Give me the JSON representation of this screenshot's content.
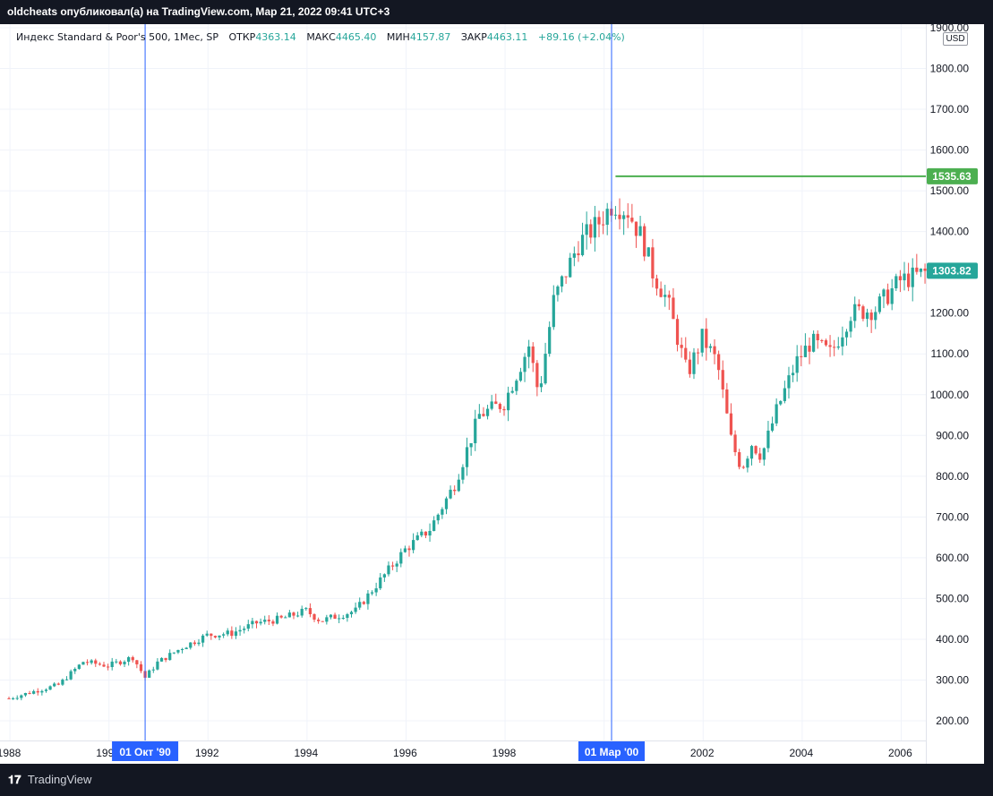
{
  "header": {
    "publisher_text": "oldcheats опубликовал(а) на TradingView.com, Мар 21, 2022 09:41 UTC+3"
  },
  "legend": {
    "title": "Индекс Standard & Poor's 500, 1Мес, SP",
    "open_label": "ОТКР",
    "open_value": "4363.14",
    "high_label": "МАКС",
    "high_value": "4465.40",
    "low_label": "МИН",
    "low_value": "4157.87",
    "close_label": "ЗАКР",
    "close_value": "4463.11",
    "change": "+89.16 (+2.04%)"
  },
  "currency": "USD",
  "footer": {
    "brand_icon": "tradingview-logo-icon",
    "brand_text": "TradingView"
  },
  "colors": {
    "up": "#26a69a",
    "down": "#ef5350",
    "marker": "#2962ff",
    "level": "#4caf50"
  },
  "chart_data": {
    "type": "candlestick",
    "y_ticks": [
      "200.00",
      "300.00",
      "400.00",
      "500.00",
      "600.00",
      "700.00",
      "800.00",
      "900.00",
      "1000.00",
      "1100.00",
      "1200.00",
      "1300.00",
      "1400.00",
      "1500.00",
      "1600.00",
      "1700.00",
      "1800.00",
      "1900.00"
    ],
    "x_ticks": [
      {
        "label": "1988",
        "year": 1988
      },
      {
        "label": "1990",
        "year": 1990
      },
      {
        "label": "1992",
        "year": 1992
      },
      {
        "label": "1994",
        "year": 1994
      },
      {
        "label": "1996",
        "year": 1996
      },
      {
        "label": "1998",
        "year": 1998
      },
      {
        "label": "2000",
        "year": 2000
      },
      {
        "label": "2002",
        "year": 2002
      },
      {
        "label": "2004",
        "year": 2004
      },
      {
        "label": "2006",
        "year": 2006
      }
    ],
    "x_range": [
      1988.0,
      2006.6
    ],
    "y_range": [
      150,
      1900
    ],
    "markers": [
      {
        "label": "01 Окт '90",
        "year": 1990.75
      },
      {
        "label": "01 Мар '00",
        "year": 2000.17
      }
    ],
    "level_line": {
      "value": 1535.63,
      "label": "1535.63",
      "from_year": 2000.25
    },
    "last_price": {
      "value": 1303.82,
      "label": "1303.82"
    },
    "closes": [
      {
        "year": 1988.0,
        "close": 255
      },
      {
        "year": 1988.5,
        "close": 272
      },
      {
        "year": 1989.0,
        "close": 288
      },
      {
        "year": 1989.5,
        "close": 345
      },
      {
        "year": 1990.0,
        "close": 335
      },
      {
        "year": 1990.5,
        "close": 356
      },
      {
        "year": 1990.75,
        "close": 306
      },
      {
        "year": 1991.0,
        "close": 343
      },
      {
        "year": 1991.5,
        "close": 380
      },
      {
        "year": 1992.0,
        "close": 410
      },
      {
        "year": 1992.5,
        "close": 415
      },
      {
        "year": 1993.0,
        "close": 440
      },
      {
        "year": 1993.5,
        "close": 450
      },
      {
        "year": 1994.0,
        "close": 470
      },
      {
        "year": 1994.3,
        "close": 445
      },
      {
        "year": 1994.7,
        "close": 460
      },
      {
        "year": 1995.0,
        "close": 470
      },
      {
        "year": 1995.5,
        "close": 545
      },
      {
        "year": 1996.0,
        "close": 620
      },
      {
        "year": 1996.5,
        "close": 670
      },
      {
        "year": 1997.0,
        "close": 780
      },
      {
        "year": 1997.5,
        "close": 950
      },
      {
        "year": 1998.0,
        "close": 980
      },
      {
        "year": 1998.5,
        "close": 1120
      },
      {
        "year": 1998.7,
        "close": 1000
      },
      {
        "year": 1999.0,
        "close": 1230
      },
      {
        "year": 1999.5,
        "close": 1370
      },
      {
        "year": 1999.9,
        "close": 1420
      },
      {
        "year": 2000.2,
        "close": 1470
      },
      {
        "year": 2000.5,
        "close": 1450
      },
      {
        "year": 2000.8,
        "close": 1380
      },
      {
        "year": 2001.0,
        "close": 1300
      },
      {
        "year": 2001.3,
        "close": 1230
      },
      {
        "year": 2001.7,
        "close": 1050
      },
      {
        "year": 2002.0,
        "close": 1140
      },
      {
        "year": 2002.3,
        "close": 1080
      },
      {
        "year": 2002.6,
        "close": 880
      },
      {
        "year": 2002.8,
        "close": 820
      },
      {
        "year": 2003.0,
        "close": 880
      },
      {
        "year": 2003.2,
        "close": 850
      },
      {
        "year": 2003.5,
        "close": 960
      },
      {
        "year": 2003.9,
        "close": 1080
      },
      {
        "year": 2004.2,
        "close": 1130
      },
      {
        "year": 2004.6,
        "close": 1100
      },
      {
        "year": 2005.0,
        "close": 1200
      },
      {
        "year": 2005.5,
        "close": 1210
      },
      {
        "year": 2006.0,
        "close": 1280
      },
      {
        "year": 2006.3,
        "close": 1290
      },
      {
        "year": 2006.6,
        "close": 1303.82
      }
    ]
  }
}
